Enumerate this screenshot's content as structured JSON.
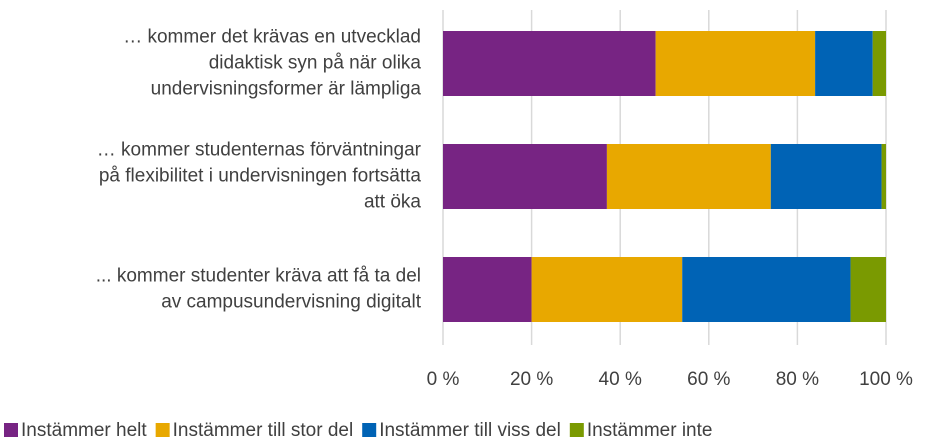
{
  "chart_data": {
    "type": "stacked_bar_horizontal",
    "categories": [
      [
        "… kommer det krävas en utvecklad",
        "didaktisk syn på när olika",
        "undervisningsformer är lämpliga"
      ],
      [
        "… kommer studenternas förväntningar",
        "på flexibilitet i undervisningen fortsätta",
        "att öka"
      ],
      [
        "... kommer studenter kräva att få ta del",
        "av campusundervisning digitalt"
      ]
    ],
    "series": [
      {
        "name": "Instämmer helt",
        "color": "#772483",
        "values": [
          48,
          37,
          20
        ]
      },
      {
        "name": "Instämmer till stor del",
        "color": "#e8a800",
        "values": [
          36,
          37,
          34
        ]
      },
      {
        "name": "Instämmer till viss del",
        "color": "#0063b5",
        "values": [
          13,
          25,
          38
        ]
      },
      {
        "name": "Instämmer inte",
        "color": "#7a9a01",
        "values": [
          3,
          1,
          8
        ]
      }
    ],
    "xlim": [
      0,
      100
    ],
    "xticks": [
      {
        "value": 0,
        "label": "0 %"
      },
      {
        "value": 20,
        "label": "20 %"
      },
      {
        "value": 40,
        "label": "40 %"
      },
      {
        "value": 60,
        "label": "60 %"
      },
      {
        "value": 80,
        "label": "80 %"
      },
      {
        "value": 100,
        "label": "100 %"
      }
    ],
    "grid": true,
    "legend": "bottom"
  }
}
